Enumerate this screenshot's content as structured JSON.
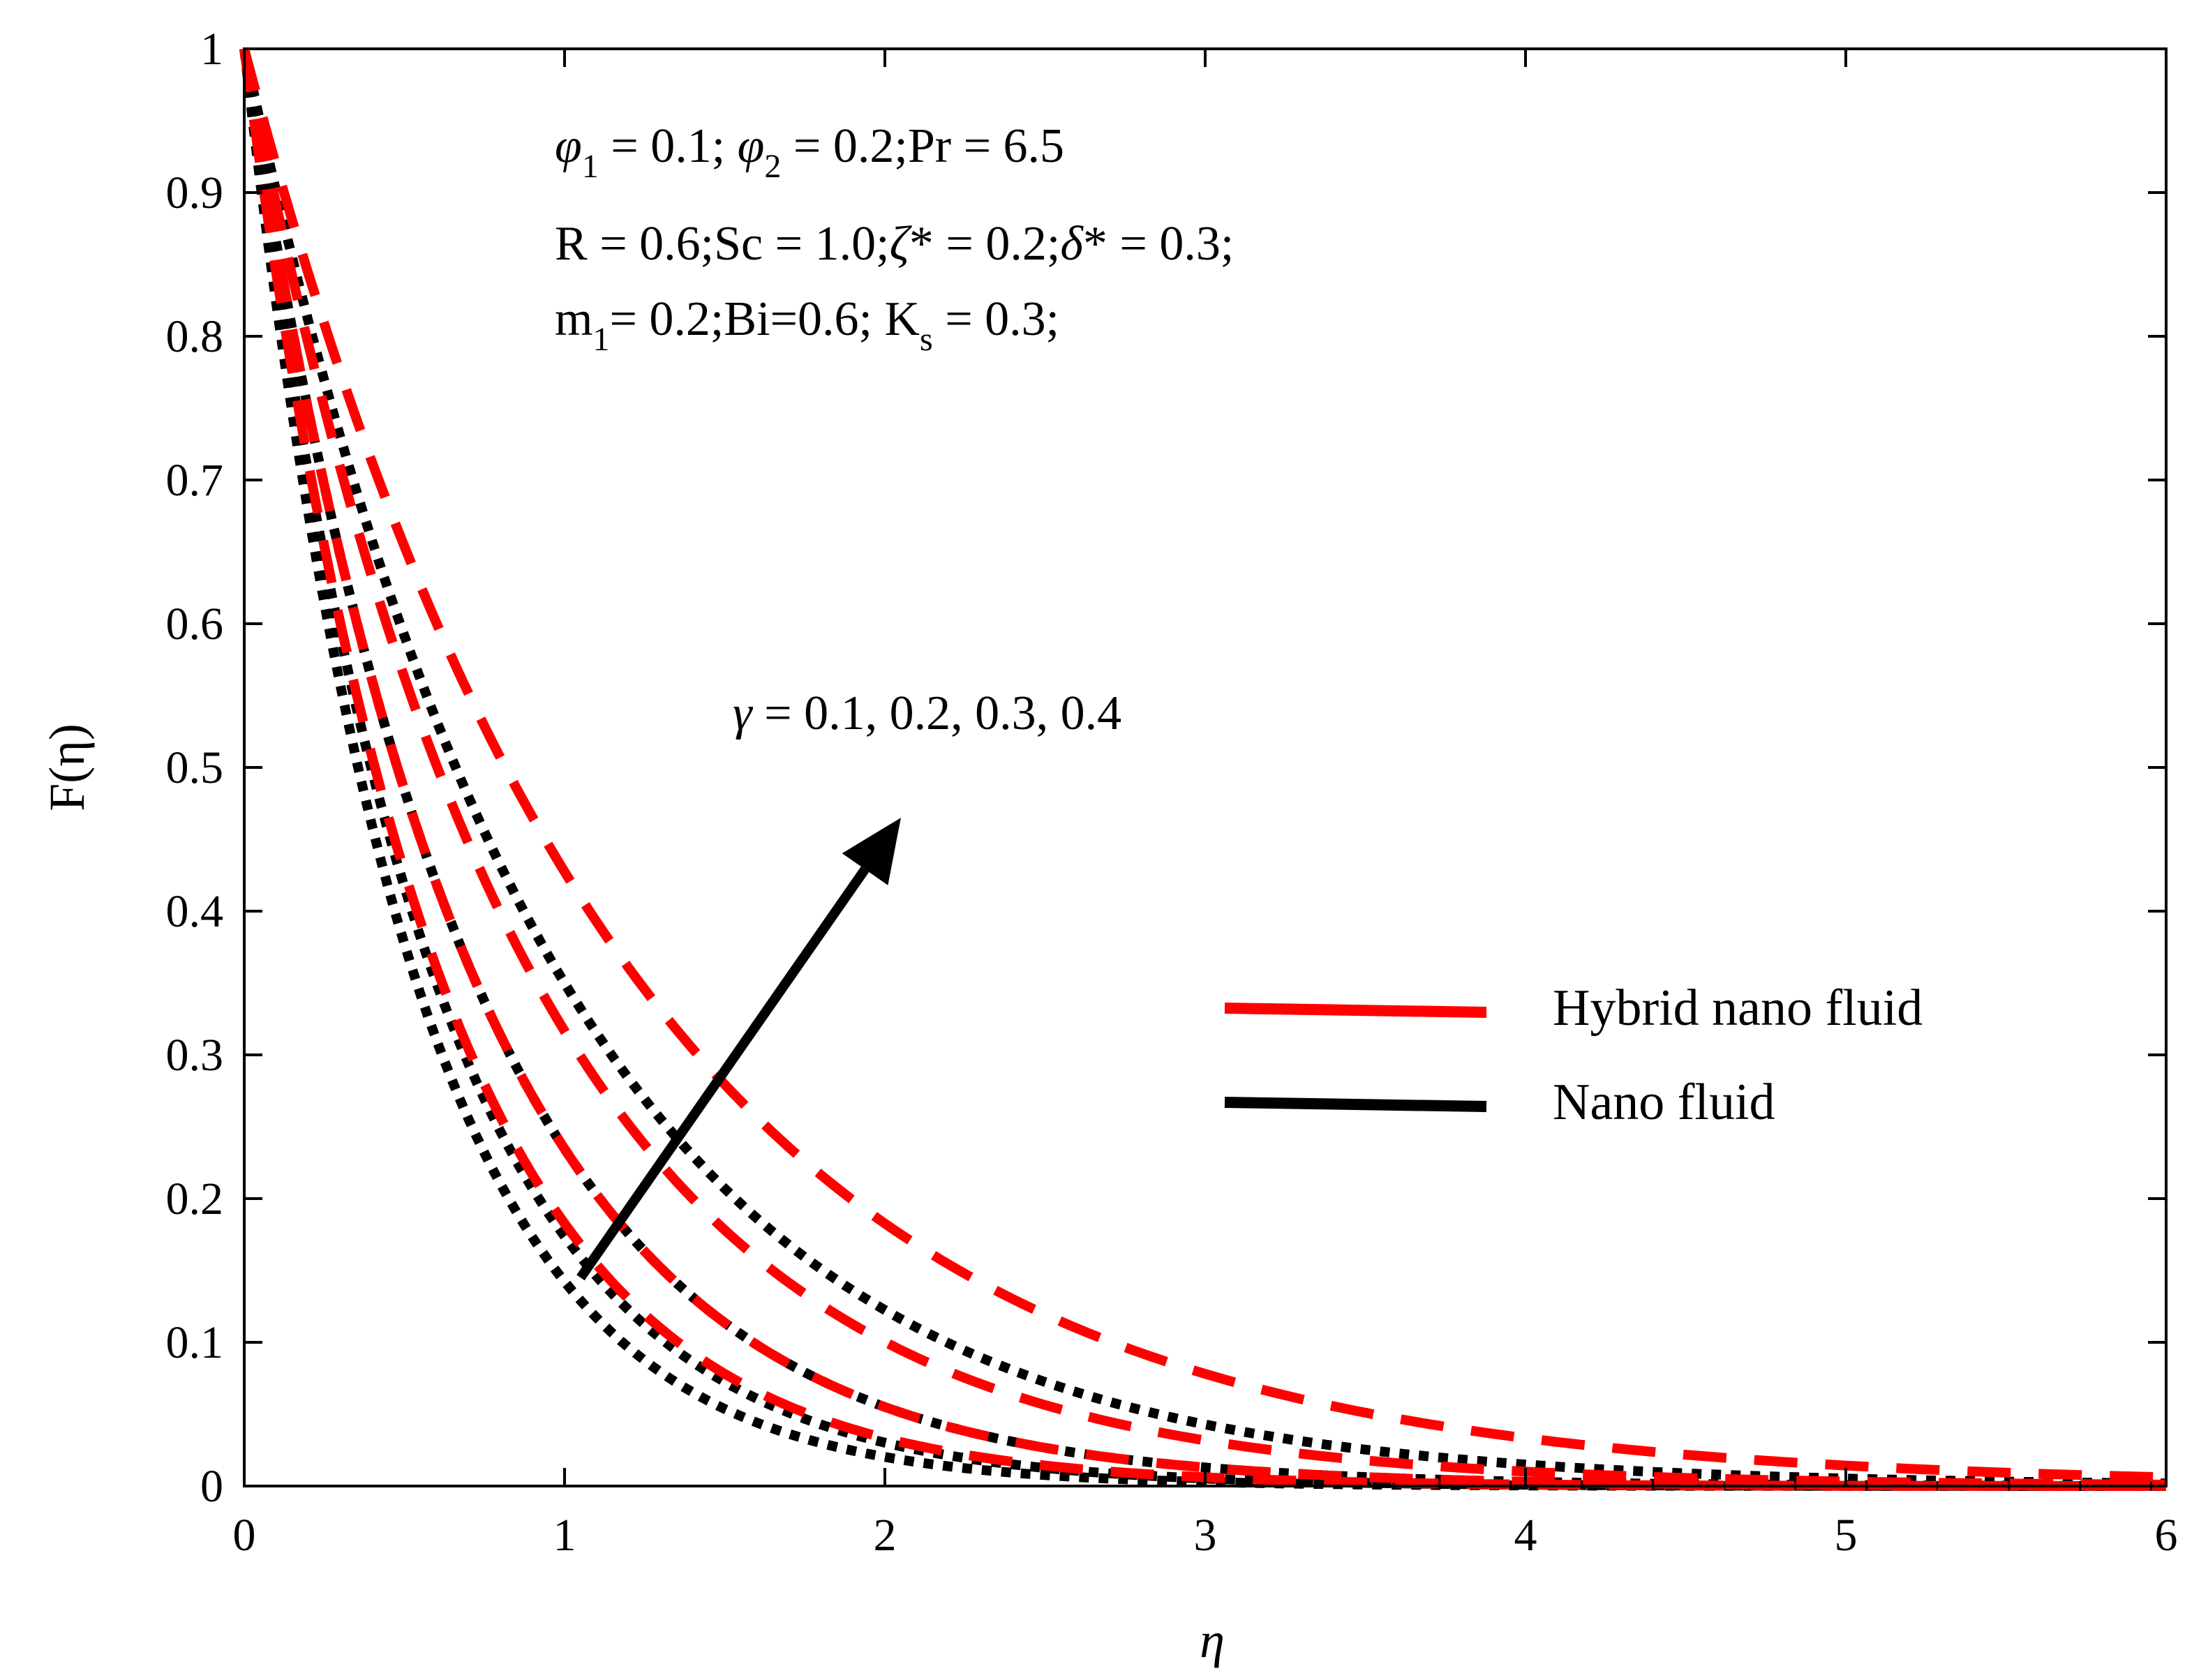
{
  "chart_data": {
    "type": "line",
    "title": "",
    "xlabel": "η",
    "ylabel": "F(η)",
    "xlim": [
      0,
      6
    ],
    "ylim": [
      0,
      1
    ],
    "xticks": [
      "0",
      "1",
      "2",
      "3",
      "4",
      "5",
      "6"
    ],
    "yticks": [
      "0",
      "0.1",
      "0.2",
      "0.3",
      "0.4",
      "0.5",
      "0.6",
      "0.7",
      "0.8",
      "0.9",
      "1"
    ],
    "grid": false,
    "colors": {
      "hybrid": "#ff0000",
      "nano": "#000000",
      "axis": "#000000"
    },
    "annotations": {
      "line1": {
        "phi": "φ",
        "s1": "1",
        "p1": " = 0.1; ",
        "s2": "2",
        "p2": " = 0.2;Pr = 6.5"
      },
      "line2": {
        "a": "R = 0.6;Sc = 1.0;",
        "zeta": "ζ",
        "b": "* = 0.2;",
        "delta": "δ",
        "c": "* = 0.3;"
      },
      "line3": {
        "a": "m",
        "s1": "1",
        "b": "= 0.2;Bi=0.6; K",
        "s2": "s",
        "c": " = 0.3;"
      },
      "gamma": {
        "sym": "γ",
        "text": " = 0.1, 0.2, 0.3, 0.4"
      }
    },
    "arrow": {
      "from": [
        1.05,
        0.145
      ],
      "to": [
        2.05,
        0.465
      ],
      "meaning": "increasing γ"
    },
    "legend": {
      "position": "center-right",
      "entries": [
        {
          "label": "Hybrid nano fluid",
          "color": "#ff0000",
          "style": "dashed"
        },
        {
          "label": "Nano fluid",
          "color": "#000000",
          "style": "dotted"
        }
      ]
    },
    "gamma_values": [
      0.1,
      0.2,
      0.3,
      0.4
    ],
    "series": [
      {
        "name": "Hybrid nano fluid, γ = 0.1",
        "group": "hybrid",
        "style": "dashed",
        "decay": 1.7
      },
      {
        "name": "Hybrid nano fluid, γ = 0.2",
        "group": "hybrid",
        "style": "dashed",
        "decay": 1.45
      },
      {
        "name": "Hybrid nano fluid, γ = 0.3",
        "group": "hybrid",
        "style": "dashed",
        "decay": 1.15
      },
      {
        "name": "Hybrid nano fluid, γ = 0.4",
        "group": "hybrid",
        "style": "dashed",
        "decay": 0.85
      },
      {
        "name": "Nano fluid, γ = 0.1",
        "group": "nano",
        "style": "dotted",
        "decay": 1.95
      },
      {
        "name": "Nano fluid, γ = 0.2",
        "group": "nano",
        "style": "dotted",
        "decay": 1.75
      },
      {
        "name": "Nano fluid, γ = 0.3",
        "group": "nano",
        "style": "dotted",
        "decay": 1.45
      },
      {
        "name": "Nano fluid, γ = 0.4",
        "group": "nano",
        "style": "dotted",
        "decay": 1.05
      }
    ]
  }
}
